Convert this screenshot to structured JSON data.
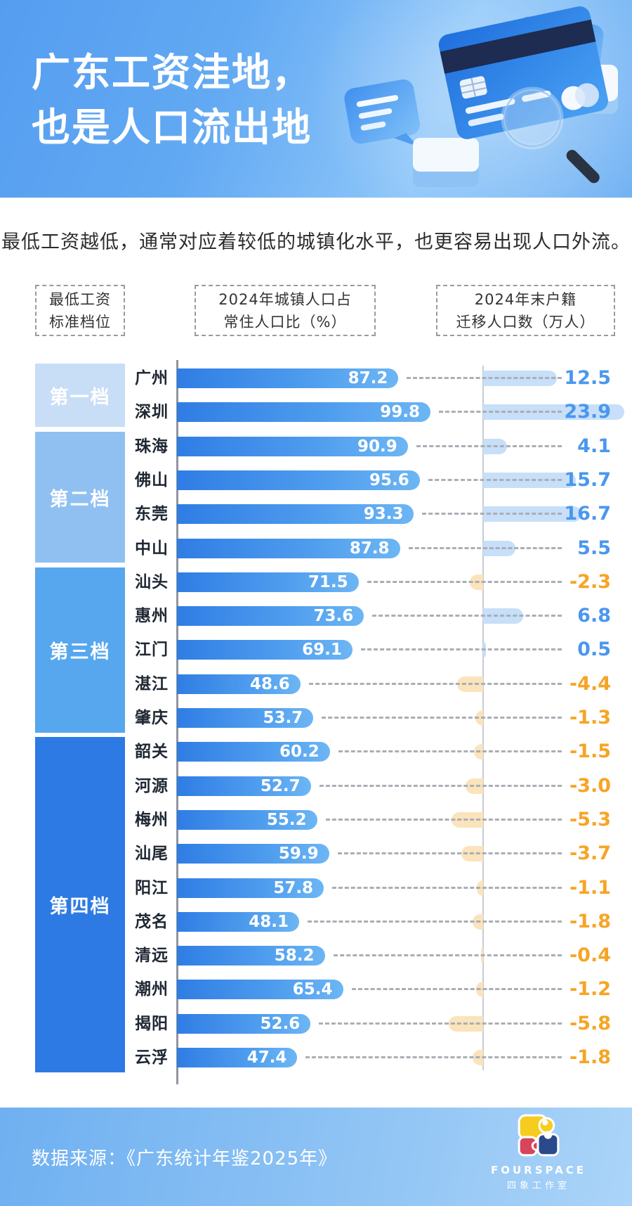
{
  "header": {
    "title_line1": "广东工资洼地，",
    "title_line2": "也是人口流出地"
  },
  "subtitle": "最低工资越低，通常对应着较低的城镇化水平，也更容易出现人口外流。",
  "column_headers": [
    {
      "line1": "最低工资",
      "line2": "标准档位"
    },
    {
      "line1": "2024年城镇人口占",
      "line2": "常住人口比（%）"
    },
    {
      "line1": "2024年末户籍",
      "line2": "迁移人口数（万人）"
    }
  ],
  "chart_data": {
    "type": "bar",
    "orientation": "horizontal",
    "series_names": [
      "2024年城镇人口占常住人口比（%）",
      "2024年末户籍迁移人口数（万人）"
    ],
    "urban_axis_range": [
      0,
      100
    ],
    "migration_positive_color": "#4a97ef",
    "migration_negative_color": "#f7a425",
    "tiers": [
      {
        "label": "第一档",
        "color": "#c8ddf6",
        "rows": [
          {
            "city": "广州",
            "urban": 87.2,
            "migration": 12.5
          },
          {
            "city": "深圳",
            "urban": 99.8,
            "migration": 23.9
          }
        ]
      },
      {
        "label": "第二档",
        "color": "#8fc0f1",
        "rows": [
          {
            "city": "珠海",
            "urban": 90.9,
            "migration": 4.1
          },
          {
            "city": "佛山",
            "urban": 95.6,
            "migration": 15.7
          },
          {
            "city": "东莞",
            "urban": 93.3,
            "migration": 16.7
          },
          {
            "city": "中山",
            "urban": 87.8,
            "migration": 5.5
          }
        ]
      },
      {
        "label": "第三档",
        "color": "#57a7ee",
        "rows": [
          {
            "city": "汕头",
            "urban": 71.5,
            "migration": -2.3
          },
          {
            "city": "惠州",
            "urban": 73.6,
            "migration": 6.8
          },
          {
            "city": "江门",
            "urban": 69.1,
            "migration": 0.5
          },
          {
            "city": "湛江",
            "urban": 48.6,
            "migration": -4.4
          },
          {
            "city": "肇庆",
            "urban": 53.7,
            "migration": -1.3
          }
        ]
      },
      {
        "label": "第四档",
        "color": "#2d7ae4",
        "rows": [
          {
            "city": "韶关",
            "urban": 60.2,
            "migration": -1.5
          },
          {
            "city": "河源",
            "urban": 52.7,
            "migration": -3.0
          },
          {
            "city": "梅州",
            "urban": 55.2,
            "migration": -5.3
          },
          {
            "city": "汕尾",
            "urban": 59.9,
            "migration": -3.7
          },
          {
            "city": "阳江",
            "urban": 57.8,
            "migration": -1.1
          },
          {
            "city": "茂名",
            "urban": 48.1,
            "migration": -1.8
          },
          {
            "city": "清远",
            "urban": 58.2,
            "migration": -0.4
          },
          {
            "city": "潮州",
            "urban": 65.4,
            "migration": -1.2
          },
          {
            "city": "揭阳",
            "urban": 52.6,
            "migration": -5.8
          },
          {
            "city": "云浮",
            "urban": 47.4,
            "migration": -1.8
          }
        ]
      }
    ]
  },
  "footer": {
    "source": "数据来源：《广东统计年鉴2025年》",
    "studio_en": "FOURSPACE",
    "studio_cn": "四象工作室"
  },
  "colors": {
    "bar_gradient_start": "#2f7de4",
    "bar_gradient_end": "#6db6f4",
    "migration_bar_positive": "#c7dff8",
    "migration_bar_negative": "#fbe3bc",
    "header_blue": "#62a9f3",
    "footer_blue": "#8ec3f4"
  }
}
